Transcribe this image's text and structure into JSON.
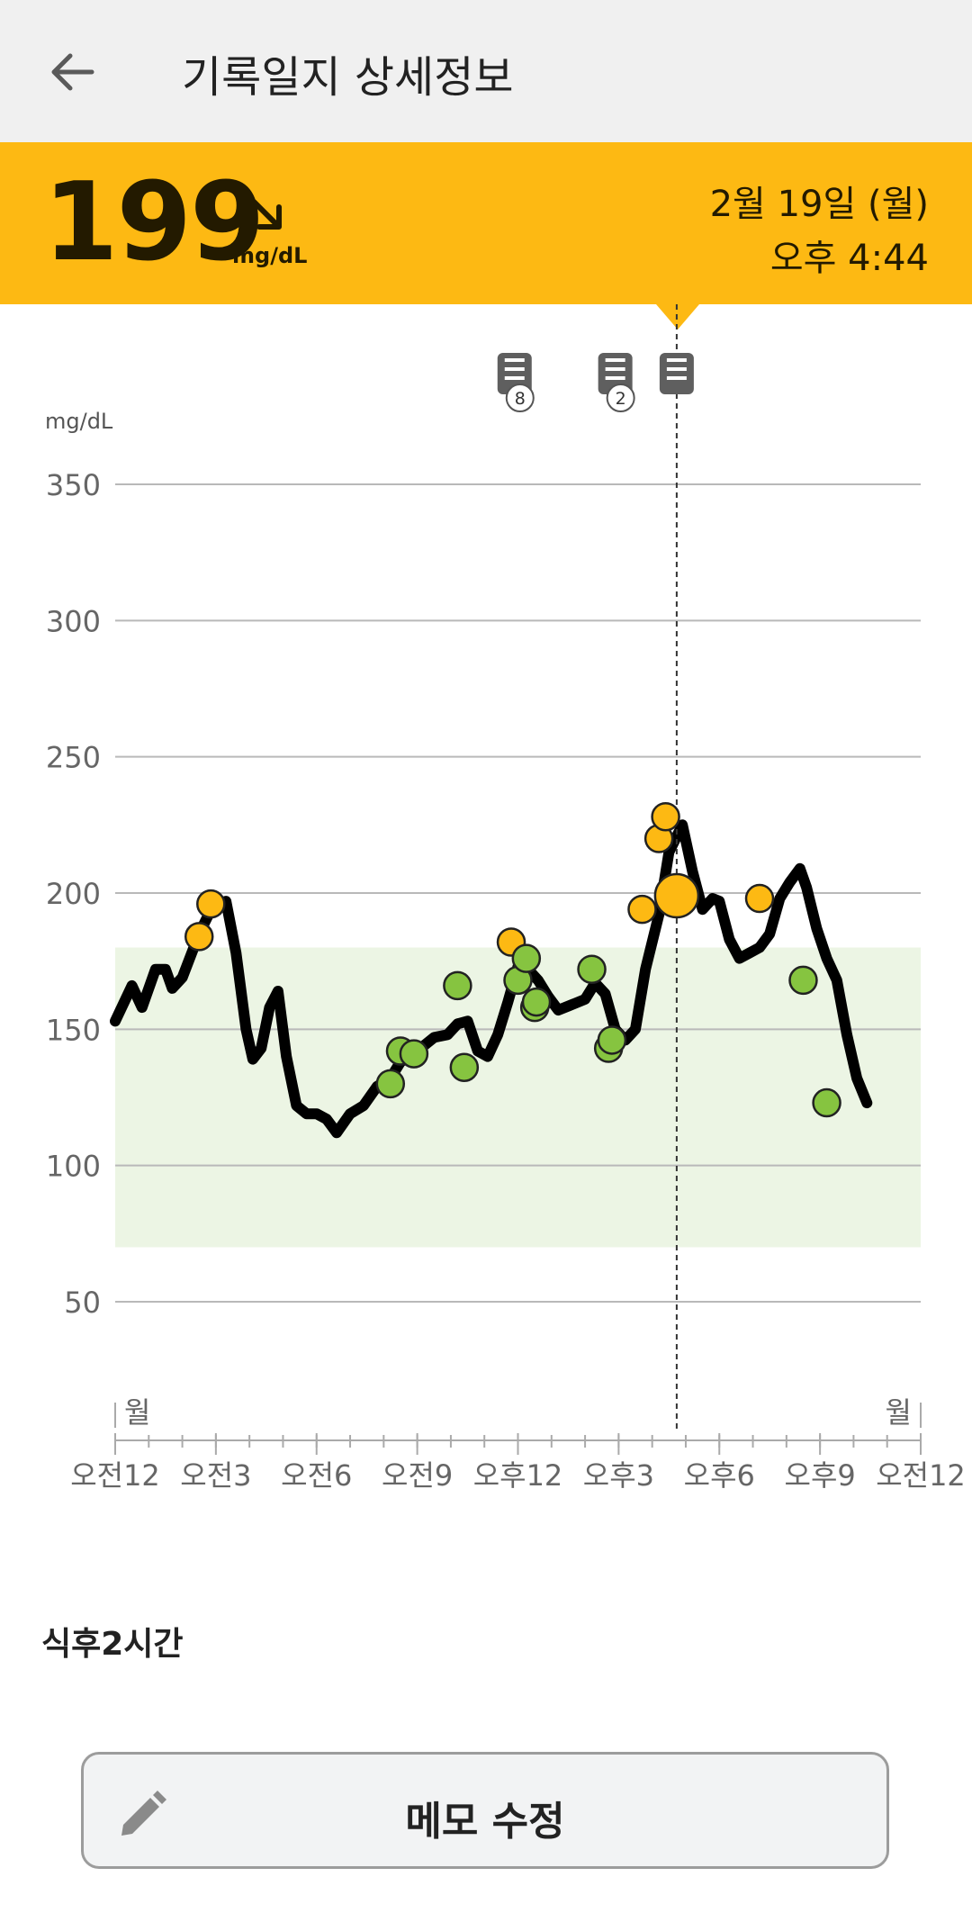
{
  "appbar": {
    "title": "기록일지 상세정보",
    "back_icon": "arrow-left-icon"
  },
  "reading": {
    "value": "199",
    "unit": "mg/dL",
    "trend_icon": "arrow-down-right-icon",
    "date": "2월 19일 (월)",
    "time": "오후 4:44",
    "banner_color": "#fdb913"
  },
  "chart_data": {
    "type": "line",
    "ylabel": "mg/dL",
    "yticks": [
      50,
      100,
      150,
      200,
      250,
      300,
      350
    ],
    "ylim": [
      0,
      370
    ],
    "xlim": [
      0,
      24
    ],
    "xticks": [
      {
        "h": 0,
        "label": "오전12"
      },
      {
        "h": 3,
        "label": "오전3"
      },
      {
        "h": 6,
        "label": "오전6"
      },
      {
        "h": 9,
        "label": "오전9"
      },
      {
        "h": 12,
        "label": "오후12"
      },
      {
        "h": 15,
        "label": "오후3"
      },
      {
        "h": 18,
        "label": "오후6"
      },
      {
        "h": 21,
        "label": "오후9"
      },
      {
        "h": 24,
        "label": "오전12"
      }
    ],
    "day_labels": [
      {
        "h": 0,
        "label": "월"
      },
      {
        "h": 24,
        "label": "월"
      }
    ],
    "target_range": [
      70,
      180
    ],
    "target_color": "#ecf5e4",
    "line_color": "#000000",
    "cursor_h": 16.73,
    "line": [
      [
        0,
        153
      ],
      [
        0.5,
        166
      ],
      [
        0.8,
        158
      ],
      [
        1.2,
        172
      ],
      [
        1.5,
        172
      ],
      [
        1.7,
        165
      ],
      [
        2.0,
        169
      ],
      [
        2.5,
        185
      ],
      [
        2.9,
        195
      ],
      [
        3.3,
        197
      ],
      [
        3.6,
        178
      ],
      [
        3.9,
        150
      ],
      [
        4.1,
        139
      ],
      [
        4.35,
        143
      ],
      [
        4.6,
        158
      ],
      [
        4.85,
        164
      ],
      [
        5.1,
        140
      ],
      [
        5.4,
        122
      ],
      [
        5.7,
        119
      ],
      [
        6.0,
        119
      ],
      [
        6.3,
        117
      ],
      [
        6.6,
        112
      ],
      [
        7.0,
        119
      ],
      [
        7.4,
        122
      ],
      [
        7.8,
        129
      ],
      [
        8.2,
        132
      ],
      [
        8.5,
        138
      ],
      [
        9.0,
        142
      ],
      [
        9.5,
        147
      ],
      [
        9.9,
        148
      ],
      [
        10.2,
        152
      ],
      [
        10.5,
        153
      ],
      [
        10.8,
        142
      ],
      [
        11.1,
        140
      ],
      [
        11.4,
        148
      ],
      [
        11.7,
        160
      ],
      [
        12.0,
        173
      ],
      [
        12.3,
        172
      ],
      [
        12.6,
        168
      ],
      [
        12.9,
        162
      ],
      [
        13.2,
        157
      ],
      [
        13.6,
        159
      ],
      [
        14.0,
        161
      ],
      [
        14.3,
        167
      ],
      [
        14.6,
        163
      ],
      [
        14.9,
        150
      ],
      [
        15.2,
        146
      ],
      [
        15.5,
        150
      ],
      [
        15.8,
        172
      ],
      [
        16.2,
        192
      ],
      [
        16.5,
        215
      ],
      [
        16.9,
        225
      ],
      [
        17.2,
        208
      ],
      [
        17.5,
        194
      ],
      [
        17.8,
        198
      ],
      [
        18.0,
        197
      ],
      [
        18.3,
        183
      ],
      [
        18.6,
        176
      ],
      [
        18.9,
        178
      ],
      [
        19.2,
        180
      ],
      [
        19.5,
        185
      ],
      [
        19.8,
        198
      ],
      [
        20.1,
        204
      ],
      [
        20.4,
        209
      ],
      [
        20.6,
        202
      ],
      [
        20.9,
        187
      ],
      [
        21.2,
        176
      ],
      [
        21.5,
        168
      ],
      [
        21.8,
        148
      ],
      [
        22.1,
        132
      ],
      [
        22.4,
        123
      ]
    ],
    "points": [
      {
        "h": 2.5,
        "v": 184,
        "c": "#fdb913"
      },
      {
        "h": 2.85,
        "v": 196,
        "c": "#fdb913"
      },
      {
        "h": 8.2,
        "v": 130,
        "c": "#86c440"
      },
      {
        "h": 8.5,
        "v": 142,
        "c": "#86c440"
      },
      {
        "h": 8.9,
        "v": 141,
        "c": "#86c440"
      },
      {
        "h": 10.2,
        "v": 166,
        "c": "#86c440"
      },
      {
        "h": 10.4,
        "v": 136,
        "c": "#86c440"
      },
      {
        "h": 11.8,
        "v": 182,
        "c": "#fdb913"
      },
      {
        "h": 12.0,
        "v": 168,
        "c": "#86c440"
      },
      {
        "h": 12.25,
        "v": 176,
        "c": "#86c440"
      },
      {
        "h": 12.5,
        "v": 158,
        "c": "#86c440"
      },
      {
        "h": 12.55,
        "v": 160,
        "c": "#86c440"
      },
      {
        "h": 14.2,
        "v": 172,
        "c": "#86c440"
      },
      {
        "h": 14.7,
        "v": 143,
        "c": "#86c440"
      },
      {
        "h": 14.8,
        "v": 146,
        "c": "#86c440"
      },
      {
        "h": 15.7,
        "v": 194,
        "c": "#fdb913"
      },
      {
        "h": 16.2,
        "v": 220,
        "c": "#fdb913"
      },
      {
        "h": 16.4,
        "v": 228,
        "c": "#fdb913"
      },
      {
        "h": 19.2,
        "v": 198,
        "c": "#fdb913"
      },
      {
        "h": 20.5,
        "v": 168,
        "c": "#86c440"
      },
      {
        "h": 21.2,
        "v": 123,
        "c": "#86c440"
      }
    ],
    "highlight_point": {
      "h": 16.73,
      "v": 199,
      "c": "#fdb913"
    },
    "note_markers": [
      {
        "h": 11.9,
        "badge": "8",
        "icon": "note-icon"
      },
      {
        "h": 14.9,
        "badge": "2",
        "icon": "note-icon"
      },
      {
        "h": 16.73,
        "badge": "",
        "icon": "note-icon"
      }
    ]
  },
  "memo": {
    "text": "식후2시간"
  },
  "edit_button": {
    "label": "메모 수정",
    "icon": "pencil-icon"
  }
}
